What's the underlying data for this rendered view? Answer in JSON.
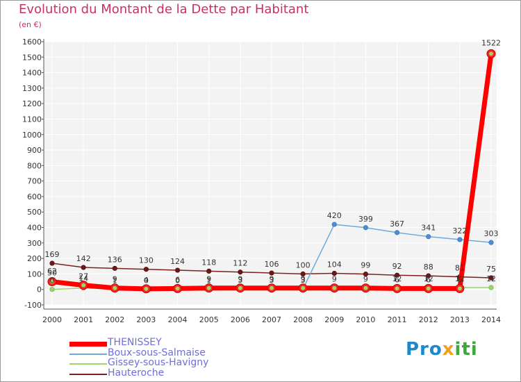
{
  "title": "Evolution du Montant de la Dette par Habitant",
  "subtitle": "(en €)",
  "logo_text": "Proxiti",
  "chart_data": {
    "type": "line",
    "title": "Evolution du Montant de la Dette par Habitant",
    "ylabel": "(en €)",
    "x": [
      2000,
      2001,
      2002,
      2003,
      2004,
      2005,
      2006,
      2007,
      2008,
      2009,
      2010,
      2011,
      2012,
      2013,
      2014
    ],
    "ylim": [
      -100,
      1600
    ],
    "yticks": [
      -100,
      0,
      100,
      200,
      300,
      400,
      500,
      600,
      700,
      800,
      900,
      1000,
      1100,
      1200,
      1300,
      1400,
      1500,
      1600
    ],
    "grid": true,
    "legend_position": "bottom-left",
    "series": [
      {
        "name": "THENISSEY",
        "color": "#ff0000",
        "values": [
          50,
          27,
          9,
          4,
          6,
          9,
          9,
          9,
          9,
          9,
          9,
          6,
          6,
          6,
          1522
        ],
        "labels": [
          "50",
          "27",
          "9",
          "4",
          "6",
          "9",
          "9",
          "9",
          "9",
          "9",
          "9",
          "6",
          "6",
          "6",
          "1522"
        ]
      },
      {
        "name": "Boux-sous-Salmaise",
        "color": "#6fa8dc",
        "values": [
          62,
          14,
          1,
          0,
          0,
          1,
          3,
          3,
          3,
          420,
          399,
          367,
          341,
          322,
          303
        ],
        "labels": [
          "62",
          "14",
          "1",
          "0",
          "0",
          "1",
          "3",
          "3",
          "3",
          "420",
          "399",
          "367",
          "341",
          "322",
          "303"
        ]
      },
      {
        "name": "Gissey-sous-Havigny",
        "color": "#9ad66a",
        "values": [
          0,
          9,
          1,
          0,
          0,
          1,
          3,
          3,
          3,
          12,
          12,
          12,
          12,
          12,
          12
        ],
        "labels": [
          "0",
          "",
          "",
          "",
          "",
          "",
          "",
          "",
          "",
          "",
          "",
          "12",
          "12",
          "12",
          "12"
        ]
      },
      {
        "name": "Hauteroche",
        "color": "#7a2020",
        "values": [
          169,
          142,
          136,
          130,
          124,
          118,
          112,
          106,
          100,
          104,
          99,
          92,
          88,
          81,
          75
        ],
        "labels": [
          "169",
          "142",
          "136",
          "130",
          "124",
          "118",
          "112",
          "106",
          "100",
          "104",
          "99",
          "92",
          "88",
          "81",
          "75"
        ]
      }
    ]
  }
}
